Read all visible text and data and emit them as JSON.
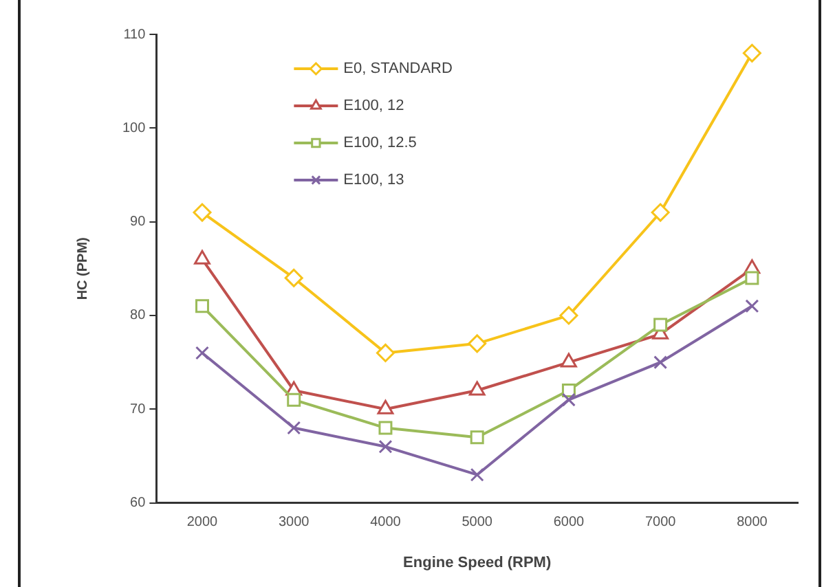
{
  "chart_data": {
    "type": "line",
    "xlabel": "Engine Speed (RPM)",
    "ylabel": "HC (PPM)",
    "categories": [
      "2000",
      "3000",
      "4000",
      "5000",
      "6000",
      "7000",
      "8000"
    ],
    "ylim": [
      60,
      110
    ],
    "yticks": [
      60,
      70,
      80,
      90,
      100,
      110
    ],
    "grid": false,
    "legend": "top left",
    "line_style": "solid",
    "series": [
      {
        "name": "E0, STANDARD",
        "color": "#f7c31a",
        "marker": "diamond",
        "values": [
          91,
          84,
          76,
          77,
          80,
          91,
          108
        ]
      },
      {
        "name": "E100, 12",
        "color": "#c0504d",
        "marker": "triangle",
        "values": [
          86,
          72,
          70,
          72,
          75,
          78,
          85
        ]
      },
      {
        "name": "E100, 12.5",
        "color": "#9bbb59",
        "marker": "square",
        "values": [
          81,
          71,
          68,
          67,
          72,
          79,
          84
        ]
      },
      {
        "name": "E100, 13",
        "color": "#8064a2",
        "marker": "cross",
        "values": [
          76,
          68,
          66,
          63,
          71,
          75,
          81
        ]
      }
    ]
  }
}
